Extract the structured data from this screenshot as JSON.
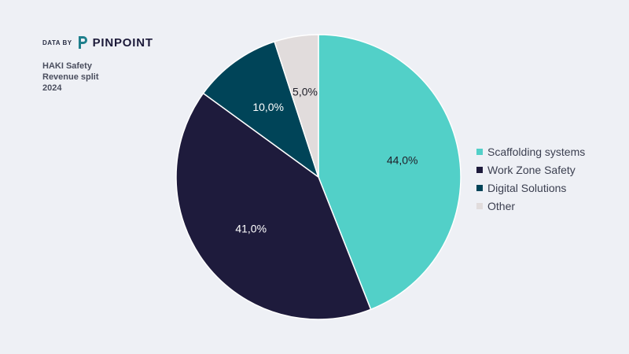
{
  "brand": {
    "prefix": "DATA BY",
    "name": "PINPOINT",
    "logo_icon": "pinpoint-logo-icon",
    "logo_color": "#1e7f8c"
  },
  "title_lines": [
    "HAKI Safety",
    "Revenue split",
    "2024"
  ],
  "chart_data": {
    "type": "pie",
    "title": "HAKI Safety Revenue split 2024",
    "categories": [
      "Scaffolding systems",
      "Work Zone Safety",
      "Digital Solutions",
      "Other"
    ],
    "values": [
      44.0,
      41.0,
      10.0,
      5.0
    ],
    "data_labels": [
      "44,0%",
      "41,0%",
      "10,0%",
      "5,0%"
    ],
    "colors": [
      "#52d0c8",
      "#1e1b3c",
      "#004458",
      "#e1dcdc"
    ],
    "label_colors": [
      "#20202a",
      "#ffffff",
      "#ffffff",
      "#20202a"
    ],
    "legend_position": "right",
    "start_angle": "12 o'clock",
    "direction": "clockwise"
  }
}
